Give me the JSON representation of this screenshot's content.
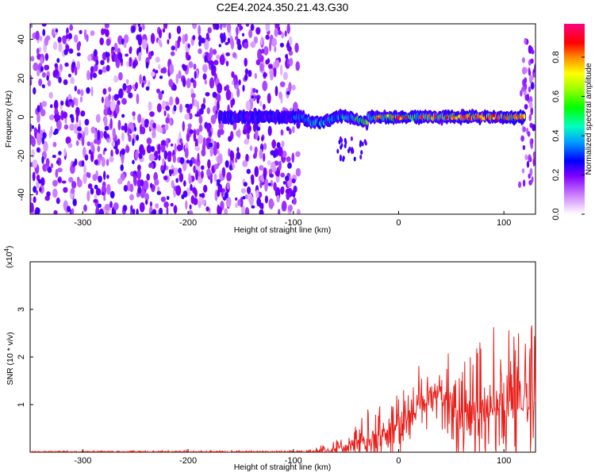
{
  "chart_data": [
    {
      "type": "heatmap",
      "title": "C2E4.2024.350.21.43.G30",
      "xlabel": "Height of straight line (km)",
      "ylabel": "Frequency (Hz)",
      "xlim": [
        -350,
        130
      ],
      "ylim": [
        -50,
        48
      ],
      "xticks": [
        -300,
        -200,
        -100,
        0,
        100
      ],
      "yticks": [
        -40,
        -20,
        0,
        20,
        40
      ],
      "colorbar": {
        "label": "Normalized spectral amplitude",
        "range": [
          0,
          0.97
        ],
        "ticks": [
          0,
          0.2,
          0.4,
          0.6,
          0.8
        ],
        "colormap": [
          "#ffffff",
          "#8000ff",
          "#0000ff",
          "#00c0ff",
          "#00ff80",
          "#80ff00",
          "#ffff00",
          "#ff8000",
          "#ff0000",
          "#ff0080"
        ]
      },
      "features": [
        {
          "region": "noise",
          "x_range": [
            -350,
            -95
          ],
          "amplitude": 0.05
        },
        {
          "region": "signal_band",
          "x_range": [
            -170,
            120
          ],
          "frequency_center_hz": 0,
          "peak_amplitude": 0.9
        },
        {
          "region": "edge_noise",
          "x_range": [
            115,
            130
          ],
          "amplitude": 0.1
        }
      ]
    },
    {
      "type": "line",
      "xlabel": "Height of straight line (km)",
      "ylabel": "SNR (10 * v/v)",
      "multiplier_label": "(x10",
      "multiplier_exp": "4",
      "multiplier_close": ")",
      "xlim": [
        -350,
        130
      ],
      "ylim": [
        0,
        4
      ],
      "xticks": [
        -300,
        -200,
        -100,
        0,
        100
      ],
      "yticks": [
        1,
        2,
        3
      ],
      "color": "#e8201c",
      "envelope": [
        {
          "x": -350,
          "base": 0.01,
          "amp": 0.02
        },
        {
          "x": -100,
          "base": 0.01,
          "amp": 0.03
        },
        {
          "x": -80,
          "base": 0.02,
          "amp": 0.08
        },
        {
          "x": -60,
          "base": 0.05,
          "amp": 0.25
        },
        {
          "x": -40,
          "base": 0.15,
          "amp": 0.55
        },
        {
          "x": -20,
          "base": 0.35,
          "amp": 0.9
        },
        {
          "x": 0,
          "base": 0.6,
          "amp": 0.9
        },
        {
          "x": 20,
          "base": 1.0,
          "amp": 0.8
        },
        {
          "x": 40,
          "base": 1.2,
          "amp": 0.9
        },
        {
          "x": 60,
          "base": 0.9,
          "amp": 1.6
        },
        {
          "x": 80,
          "base": 0.8,
          "amp": 1.9
        },
        {
          "x": 100,
          "base": 0.9,
          "amp": 2.2
        },
        {
          "x": 130,
          "base": 0.9,
          "amp": 2.1
        }
      ]
    }
  ]
}
